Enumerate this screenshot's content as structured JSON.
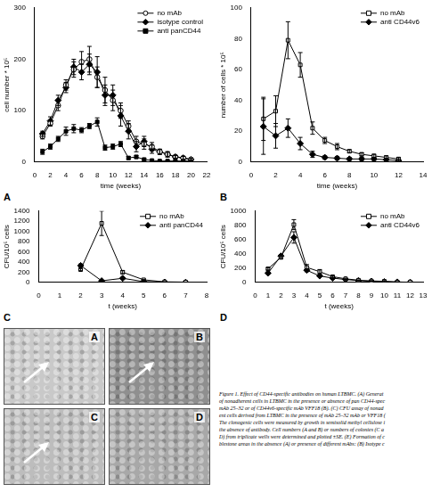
{
  "chart_data": [
    {
      "panel": "A",
      "type": "line",
      "x_label": "time (weeks)",
      "y_label": "cell number * 10⁵",
      "xlim": [
        0,
        22
      ],
      "xticks": [
        0,
        2,
        4,
        6,
        8,
        10,
        12,
        14,
        16,
        18,
        20,
        22
      ],
      "ylim": [
        0,
        300
      ],
      "yticks": [
        0,
        100,
        200,
        300
      ],
      "grid": false,
      "legend": "upper right",
      "x": [
        1,
        2,
        3,
        4,
        5,
        6,
        7,
        8,
        9,
        10,
        11,
        12,
        13,
        14,
        15,
        16,
        17,
        18,
        19,
        20
      ],
      "series": [
        {
          "name": "no mAb",
          "color": "#000000",
          "marker": "open circle",
          "values": [
            50,
            75,
            110,
            150,
            180,
            195,
            200,
            165,
            140,
            120,
            100,
            70,
            40,
            35,
            30,
            20,
            15,
            10,
            8,
            5
          ],
          "errors": [
            5,
            5,
            10,
            10,
            15,
            20,
            25,
            20,
            25,
            20,
            15,
            10,
            10,
            10,
            8,
            5,
            5,
            3,
            3,
            2
          ]
        },
        {
          "name": "isotype control",
          "color": "#000000",
          "marker": "diamond",
          "values": [
            55,
            80,
            120,
            145,
            185,
            175,
            190,
            175,
            130,
            130,
            90,
            60,
            30,
            40,
            25,
            20,
            15,
            10,
            8,
            5
          ],
          "errors": [
            5,
            8,
            10,
            10,
            15,
            15,
            20,
            30,
            20,
            20,
            20,
            15,
            10,
            10,
            8,
            5,
            5,
            3,
            3,
            2
          ]
        },
        {
          "name": "anti panCD44",
          "color": "#000000",
          "marker": "square",
          "values": [
            20,
            30,
            45,
            60,
            65,
            62,
            70,
            78,
            28,
            30,
            35,
            8,
            10,
            5,
            3,
            2,
            2,
            2,
            2,
            2
          ],
          "errors": [
            5,
            5,
            5,
            8,
            8,
            5,
            5,
            8,
            5,
            5,
            5,
            3,
            3,
            2,
            2,
            1,
            1,
            1,
            1,
            1
          ]
        }
      ]
    },
    {
      "panel": "B",
      "type": "line",
      "x_label": "time (weeks)",
      "y_label": "number of cells * 10⁵",
      "xlim": [
        0,
        14
      ],
      "xticks": [
        0,
        2,
        4,
        6,
        8,
        10,
        12,
        14
      ],
      "ylim": [
        0,
        100
      ],
      "yticks": [
        0,
        20,
        40,
        60,
        80,
        100
      ],
      "grid": false,
      "legend": "upper right",
      "x": [
        1,
        2,
        3,
        4,
        5,
        6,
        7,
        8,
        9,
        10,
        11,
        12
      ],
      "series": [
        {
          "name": "no mAb",
          "color": "#000000",
          "marker": "open square",
          "values": [
            28,
            33,
            79,
            63,
            22,
            14,
            10,
            7,
            5,
            4,
            3,
            2
          ],
          "errors": [
            14,
            10,
            12,
            8,
            4,
            2,
            2,
            1,
            1,
            1,
            1,
            1
          ]
        },
        {
          "name": "anti CD44v6",
          "color": "#000000",
          "marker": "diamond",
          "values": [
            23,
            17,
            22,
            12,
            5,
            3,
            2.5,
            2,
            2,
            2,
            1.5,
            1
          ],
          "errors": [
            18,
            8,
            6,
            4,
            2,
            1,
            1,
            1,
            1,
            1,
            1,
            1
          ]
        }
      ]
    },
    {
      "panel": "C",
      "type": "line",
      "x_label": "t (weeks)",
      "y_label": "CFU/10⁵ cells",
      "xlim": [
        0,
        8
      ],
      "xticks": [
        0,
        1,
        2,
        3,
        4,
        5,
        6,
        7,
        8
      ],
      "ylim": [
        0,
        1400
      ],
      "yticks": [
        0,
        200,
        400,
        600,
        800,
        1000,
        1200,
        1400
      ],
      "grid": false,
      "legend": "upper right",
      "x": [
        2,
        3,
        4,
        5,
        6,
        7
      ],
      "series": [
        {
          "name": "no mAb",
          "color": "#000000",
          "marker": "open square",
          "values": [
            250,
            1160,
            200,
            50,
            10,
            5
          ],
          "errors": [
            20,
            240,
            30,
            10,
            3,
            2
          ]
        },
        {
          "name": "anti panCD44",
          "color": "#000000",
          "marker": "diamond",
          "values": [
            330,
            30,
            80,
            15,
            5,
            2
          ],
          "errors": [
            30,
            10,
            15,
            5,
            2,
            1
          ]
        }
      ]
    },
    {
      "panel": "D",
      "type": "line",
      "x_label": "t (weeks)",
      "y_label": "CFU/10⁵ cells",
      "xlim": [
        0,
        13
      ],
      "xticks": [
        0,
        1,
        2,
        3,
        4,
        5,
        6,
        7,
        8,
        9,
        10,
        11,
        12,
        13
      ],
      "ylim": [
        0,
        1000
      ],
      "yticks": [
        0,
        200,
        400,
        600,
        800,
        1000
      ],
      "grid": false,
      "legend": "upper right",
      "x": [
        1,
        2,
        3,
        4,
        5,
        6,
        7,
        8,
        9,
        10,
        11,
        12
      ],
      "series": [
        {
          "name": "no mAb",
          "color": "#000000",
          "marker": "open square",
          "values": [
            190,
            350,
            810,
            210,
            150,
            80,
            50,
            30,
            20,
            15,
            5,
            3
          ],
          "errors": [
            15,
            20,
            70,
            40,
            30,
            10,
            8,
            5,
            5,
            10,
            3,
            2
          ]
        },
        {
          "name": "anti CD44v6",
          "color": "#000000",
          "marker": "diamond",
          "values": [
            130,
            370,
            630,
            170,
            90,
            60,
            40,
            25,
            15,
            10,
            5,
            2
          ],
          "errors": [
            15,
            20,
            80,
            20,
            10,
            8,
            5,
            5,
            3,
            3,
            2,
            2
          ]
        }
      ]
    }
  ],
  "micrographs": {
    "labels": [
      "A",
      "B",
      "C",
      "D"
    ]
  },
  "caption": {
    "lines": [
      "Figure 1. Effect of CD44-specific antibodies on human LTBMC. (A) Generat",
      "of nonadherent cells in LTBMC in the presence or absence of pan CD44-spec",
      "mAb 25–32 or of CD44v6-specific mAb VFF18 (B). (C) CFU assay of nonad",
      "ent cells derived from LTBMC in the presence of mAb 25–32 mAb or VFF18 (",
      "The clonogenic cells were measured by growth in semisolid methyl cellulose i",
      "the absence of antibody. Cell numbers (A and B) or numbers of colonies (C a",
      "D) from triplicate wells were determined and plotted ±SE. (E) Formation of c",
      "blestone areas in the absence (A) or presence of different mAbs: (B) Isotype c"
    ]
  }
}
